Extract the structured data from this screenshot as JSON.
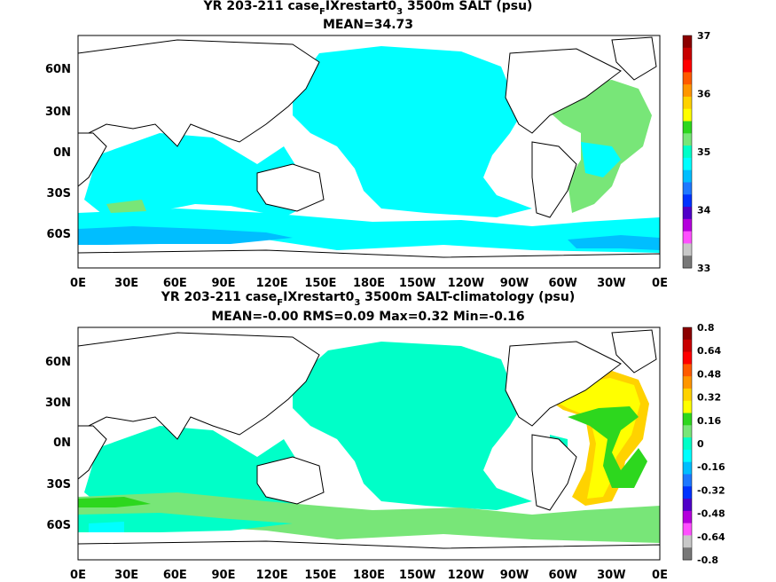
{
  "panels": [
    {
      "title_line1_prefix": "YR 203-211 case",
      "title_sub": "F",
      "title_mid": "IXrestart0",
      "title_sub2": "3",
      "title_suffix": " 3500m SALT (psu)",
      "title_line2": "MEAN=34.73",
      "colorbar": {
        "labels": [
          "37",
          "36",
          "35",
          "34",
          "33"
        ],
        "colors": [
          "#8b0000",
          "#c80000",
          "#ff0000",
          "#ff5a00",
          "#ff9600",
          "#ffd200",
          "#ffff00",
          "#2dd71e",
          "#78e678",
          "#00ffc8",
          "#00ffff",
          "#00beff",
          "#1e78ff",
          "#0032ff",
          "#5000c8",
          "#b400dc",
          "#ff50ff",
          "#c8c8c8",
          "#787878"
        ]
      }
    },
    {
      "title_line1_prefix": "YR 203-211 case",
      "title_sub": "F",
      "title_mid": "IXrestart0",
      "title_sub2": "3",
      "title_suffix": " 3500m SALT-climatology (psu)",
      "title_line2": "MEAN=-0.00   RMS=0.09   Max=0.32   Min=-0.16",
      "colorbar": {
        "labels": [
          "0.8",
          "0.64",
          "0.48",
          "0.32",
          "0.16",
          "0",
          "-0.16",
          "-0.32",
          "-0.48",
          "-0.64",
          "-0.8"
        ],
        "colors": [
          "#8b0000",
          "#c80000",
          "#ff0000",
          "#ff5a00",
          "#ff9600",
          "#ffd200",
          "#ffff00",
          "#2dd71e",
          "#78e678",
          "#00ffc8",
          "#00ffff",
          "#00beff",
          "#1e78ff",
          "#0032ff",
          "#5000c8",
          "#b400dc",
          "#ff50ff",
          "#c8c8c8",
          "#787878"
        ]
      }
    }
  ],
  "axes": {
    "lon_labels": [
      "0E",
      "30E",
      "60E",
      "90E",
      "120E",
      "150E",
      "180E",
      "150W",
      "120W",
      "90W",
      "60W",
      "30W",
      "0E"
    ],
    "lat_labels": [
      "60N",
      "30N",
      "0N",
      "30S",
      "60S"
    ]
  },
  "map_colors": {
    "top_main": "#00ffff",
    "top_south": "#00beff",
    "top_atlantic": "#78e678",
    "bottom_main": "#00ffc8",
    "bottom_south": "#78e678",
    "bottom_atlantic_high": "#ffff00",
    "bottom_atlantic_mid": "#2dd71e",
    "bottom_atlantic_edge": "#ffd200"
  }
}
